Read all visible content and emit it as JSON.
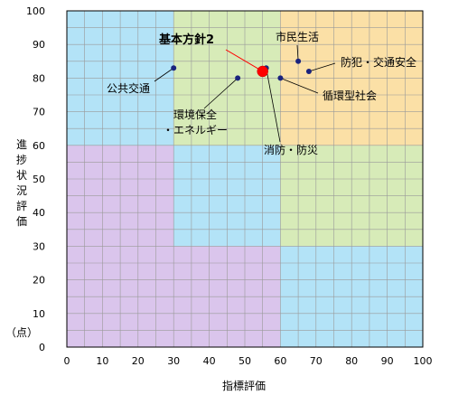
{
  "chart_data": {
    "type": "scatter",
    "xlabel": "指標評価",
    "ylabel": "進捗状況評価",
    "y_unit": "（点）",
    "xlim": [
      0,
      100
    ],
    "ylim": [
      0,
      100
    ],
    "x_ticks": [
      0,
      10,
      20,
      30,
      40,
      50,
      60,
      70,
      80,
      90,
      100
    ],
    "y_ticks": [
      0,
      10,
      20,
      30,
      40,
      50,
      60,
      70,
      80,
      90,
      100
    ],
    "grid": true,
    "background_zones": [
      {
        "x": [
          0,
          30
        ],
        "y": [
          60,
          100
        ],
        "color": "#b3e3f7"
      },
      {
        "x": [
          30,
          60
        ],
        "y": [
          60,
          100
        ],
        "color": "#d7ebb8"
      },
      {
        "x": [
          60,
          100
        ],
        "y": [
          60,
          100
        ],
        "color": "#fbe0a6"
      },
      {
        "x": [
          0,
          30
        ],
        "y": [
          0,
          60
        ],
        "color": "#dac5ec"
      },
      {
        "x": [
          30,
          60
        ],
        "y": [
          30,
          60
        ],
        "color": "#b3e3f7"
      },
      {
        "x": [
          60,
          100
        ],
        "y": [
          30,
          60
        ],
        "color": "#d7ebb8"
      },
      {
        "x": [
          30,
          60
        ],
        "y": [
          0,
          30
        ],
        "color": "#dac5ec"
      },
      {
        "x": [
          60,
          100
        ],
        "y": [
          0,
          30
        ],
        "color": "#b3e3f7"
      }
    ],
    "points": [
      {
        "label": "公共交通",
        "x": 30,
        "y": 83
      },
      {
        "label": "環境保全\n・エネルギー",
        "x": 48,
        "y": 80
      },
      {
        "label": "消防・防災",
        "x": 56,
        "y": 83
      },
      {
        "label": "循環型社会",
        "x": 60,
        "y": 80
      },
      {
        "label": "市民生活",
        "x": 65,
        "y": 85
      },
      {
        "label": "防犯・交通安全",
        "x": 68,
        "y": 82
      }
    ],
    "highlight": {
      "label": "基本方針2",
      "x": 55,
      "y": 82
    },
    "point_color": "#1a237e",
    "highlight_color": "#ff0000",
    "line_color": "#000000",
    "highlight_line_color": "#ff0000"
  }
}
